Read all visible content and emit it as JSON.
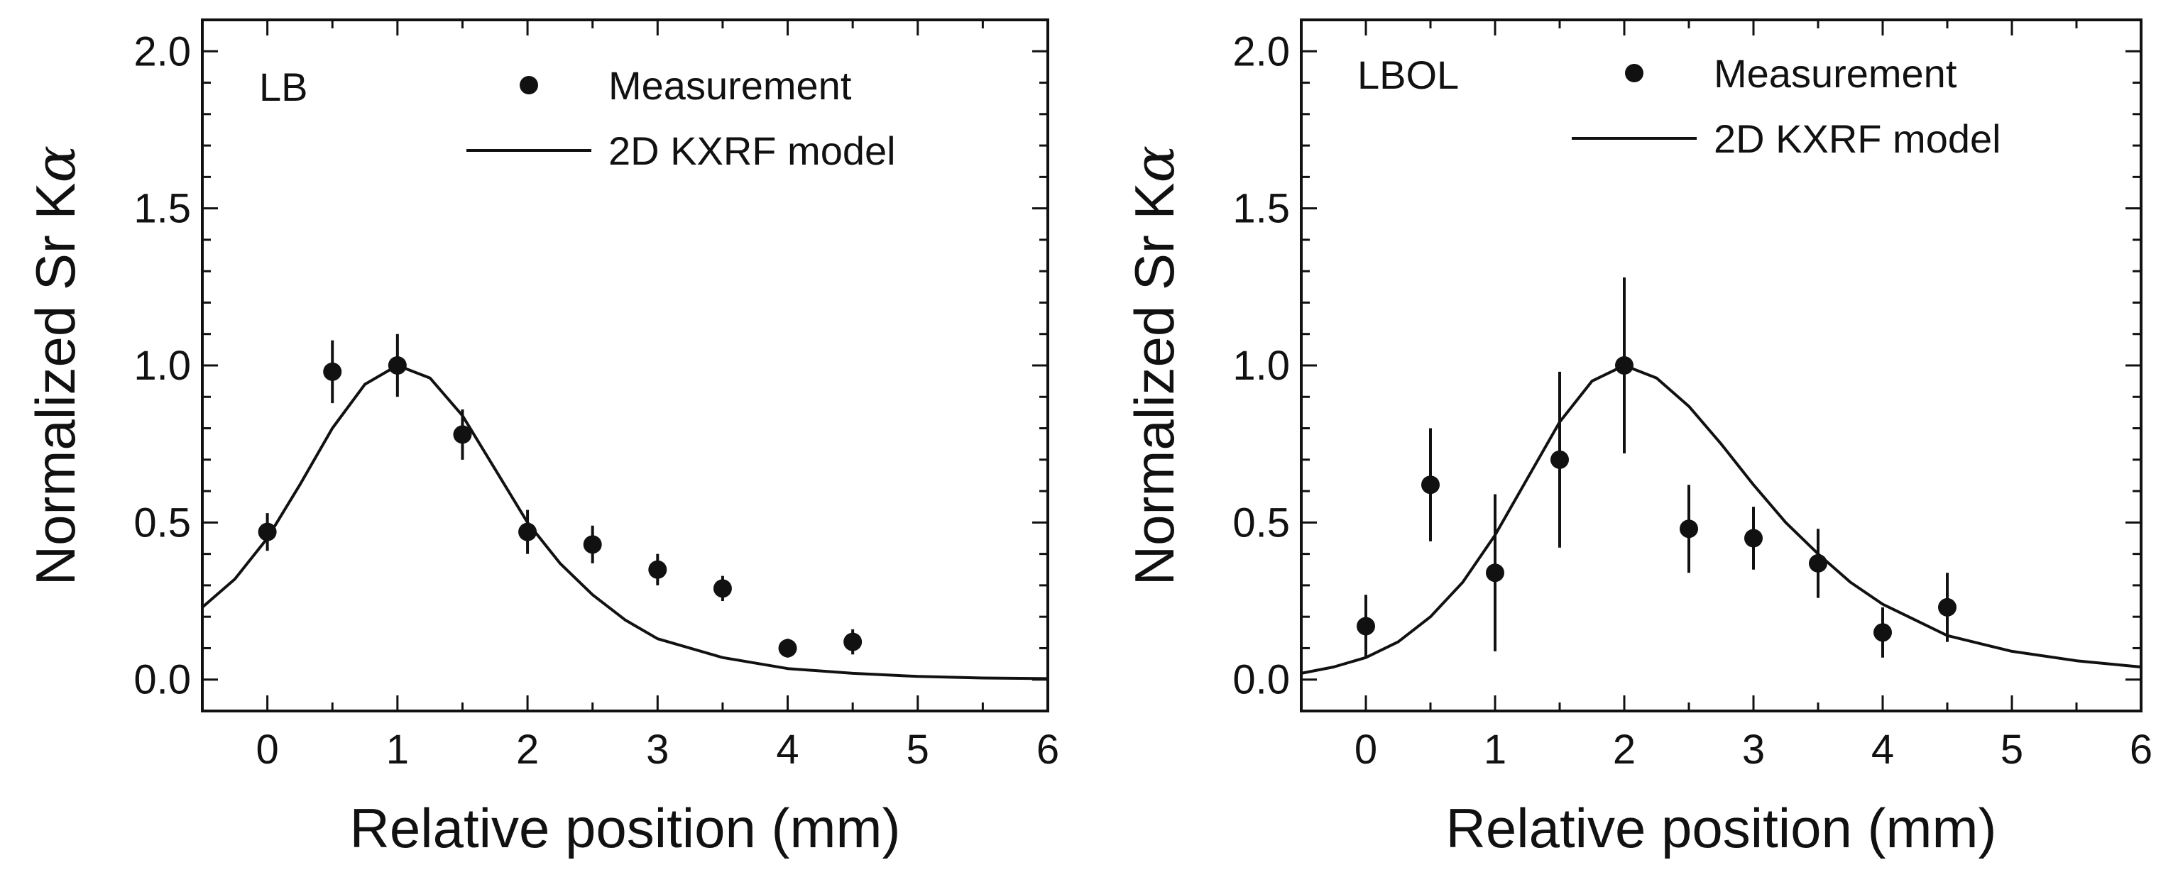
{
  "chart_data": [
    {
      "type": "scatter",
      "panel_label": "LB",
      "xlabel": "Relative position (mm)",
      "ylabel": "Normalized Sr K",
      "ylabel_symbol": "α",
      "xlim": [
        -0.5,
        6
      ],
      "ylim": [
        -0.1,
        2.1
      ],
      "x_ticks": [
        0,
        1,
        2,
        3,
        4,
        5,
        6
      ],
      "x_tick_labels": [
        "0",
        "1",
        "2",
        "3",
        "4",
        "5",
        "6"
      ],
      "y_ticks": [
        0.0,
        0.5,
        1.0,
        1.5,
        2.0
      ],
      "y_tick_labels": [
        "0.0",
        "0.5",
        "1.0",
        "1.5",
        "2.0"
      ],
      "legend": {
        "placement": "top-right",
        "entries": [
          "Measurement",
          "2D KXRF model"
        ]
      },
      "series": [
        {
          "name": "Measurement",
          "kind": "points-with-error-bars",
          "x": [
            0,
            0.5,
            1,
            1.5,
            2,
            2.5,
            3,
            3.5,
            4,
            4.5
          ],
          "y": [
            0.47,
            0.98,
            1.0,
            0.78,
            0.47,
            0.43,
            0.35,
            0.29,
            0.1,
            0.12
          ],
          "err": [
            0.06,
            0.1,
            0.1,
            0.08,
            0.07,
            0.06,
            0.05,
            0.04,
            0.03,
            0.04
          ]
        },
        {
          "name": "2D KXRF model",
          "kind": "line",
          "x": [
            -0.5,
            -0.25,
            0,
            0.25,
            0.5,
            0.75,
            1,
            1.25,
            1.5,
            1.75,
            2,
            2.25,
            2.5,
            2.75,
            3,
            3.5,
            4,
            4.5,
            5,
            5.5,
            6
          ],
          "y": [
            0.23,
            0.32,
            0.45,
            0.62,
            0.8,
            0.94,
            1.0,
            0.96,
            0.84,
            0.67,
            0.5,
            0.37,
            0.27,
            0.19,
            0.13,
            0.07,
            0.035,
            0.02,
            0.01,
            0.005,
            0.003
          ]
        }
      ]
    },
    {
      "type": "scatter",
      "panel_label": "LBOL",
      "xlabel": "Relative position (mm)",
      "ylabel": "Normalized Sr K",
      "ylabel_symbol": "α",
      "xlim": [
        -0.5,
        6
      ],
      "ylim": [
        -0.1,
        2.1
      ],
      "x_ticks": [
        0,
        1,
        2,
        3,
        4,
        5,
        6
      ],
      "x_tick_labels": [
        "0",
        "1",
        "2",
        "3",
        "4",
        "5",
        "6"
      ],
      "y_ticks": [
        0.0,
        0.5,
        1.0,
        1.5,
        2.0
      ],
      "y_tick_labels": [
        "0.0",
        "0.5",
        "1.0",
        "1.5",
        "2.0"
      ],
      "legend": {
        "placement": "top-right",
        "entries": [
          "Measurement",
          "2D KXRF model"
        ]
      },
      "series": [
        {
          "name": "Measurement",
          "kind": "points-with-error-bars",
          "x": [
            0,
            0.5,
            1,
            1.5,
            2,
            2.5,
            3,
            3.5,
            4,
            4.5
          ],
          "y": [
            0.17,
            0.62,
            0.34,
            0.7,
            1.0,
            0.48,
            0.45,
            0.37,
            0.15,
            0.23
          ],
          "err": [
            0.1,
            0.18,
            0.25,
            0.28,
            0.28,
            0.14,
            0.1,
            0.11,
            0.08,
            0.11
          ]
        },
        {
          "name": "2D KXRF model",
          "kind": "line",
          "x": [
            -0.5,
            -0.25,
            0,
            0.25,
            0.5,
            0.75,
            1,
            1.25,
            1.5,
            1.75,
            2,
            2.25,
            2.5,
            2.75,
            3,
            3.25,
            3.5,
            3.75,
            4,
            4.5,
            5,
            5.5,
            6
          ],
          "y": [
            0.02,
            0.04,
            0.07,
            0.12,
            0.2,
            0.31,
            0.46,
            0.64,
            0.82,
            0.95,
            1.0,
            0.96,
            0.87,
            0.75,
            0.62,
            0.5,
            0.4,
            0.31,
            0.24,
            0.14,
            0.09,
            0.06,
            0.04
          ]
        }
      ]
    }
  ]
}
